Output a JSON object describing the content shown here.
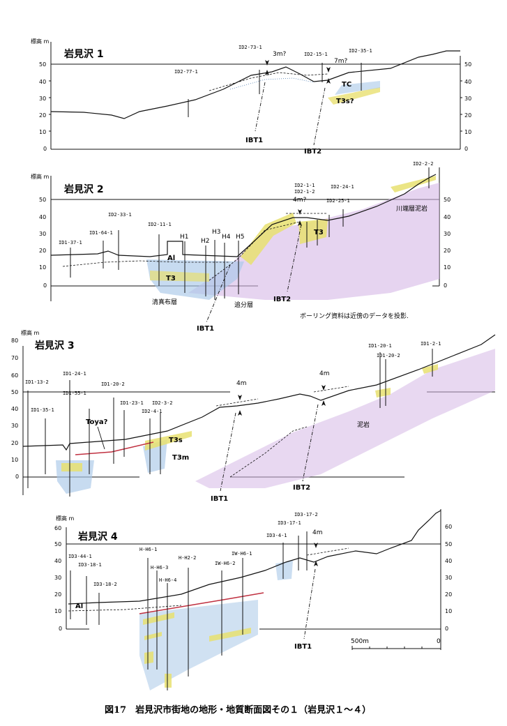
{
  "caption": "図17　岩見沢市街地の地形・地質断面図その１（岩見沢１～４）",
  "unit_label": "標高 m",
  "sections": [
    {
      "title": "岩見沢 1",
      "ticks": [
        "50",
        "40",
        "30",
        "20",
        "10",
        "0"
      ],
      "boreholes": [
        "ID2-77-1",
        "ID2-73-1",
        "ID2-15-1",
        "ID2-35-1"
      ],
      "offsets": [
        "3m?",
        "7m?"
      ],
      "faults": [
        "IBT1",
        "IBT2"
      ],
      "units": [
        "TC",
        "T3s?"
      ]
    },
    {
      "title": "岩見沢 2",
      "ticks": [
        "50",
        "40",
        "30",
        "20",
        "10",
        "0"
      ],
      "boreholes": [
        "ID1-37-1",
        "ID1-64-1",
        "ID2-33-1",
        "ID2-11-1",
        "H1",
        "H2",
        "H3",
        "H4",
        "H5",
        "ID2-1-1",
        "ID2-1-2",
        "ID2-24-1",
        "ID2-25-1",
        "ID2-2-2"
      ],
      "offsets": [
        "4m?"
      ],
      "faults": [
        "IBT1",
        "IBT2"
      ],
      "units": [
        "Al",
        "T3",
        "T3"
      ],
      "formations": [
        "清真布層",
        "追分層",
        "川端層泥岩"
      ],
      "note": "ボーリング資料は近傍のデータを投影."
    },
    {
      "title": "岩見沢 3",
      "ticks": [
        "80",
        "70",
        "60",
        "50",
        "40",
        "30",
        "20",
        "10",
        "0"
      ],
      "boreholes": [
        "ID1-13-2",
        "ID1-24-1",
        "ID1-35-1",
        "ID1-55-1",
        "ID1-20-2",
        "ID1-23-1",
        "ID2-3-2",
        "ID2-4-1",
        "ID1-20-1",
        "ID1-20-2",
        "ID1-2-1"
      ],
      "offsets": [
        "4m",
        "4m"
      ],
      "faults": [
        "IBT1",
        "IBT2"
      ],
      "units": [
        "Toya?",
        "T3s",
        "T3m"
      ],
      "formations": [
        "泥岩"
      ]
    },
    {
      "title": "岩見沢 4",
      "ticks": [
        "60",
        "50",
        "40",
        "30",
        "20",
        "10",
        "0"
      ],
      "ticks_right": [
        "60",
        "50",
        "40",
        "30",
        "20",
        "10",
        "0"
      ],
      "boreholes": [
        "ID3-44-1",
        "ID3-18-1",
        "ID3-18-2",
        "H-H6-1",
        "H-H6-3",
        "H-H6-4",
        "H-H2-2",
        "IW-H6-2",
        "IW-H6-1",
        "ID3-4-1",
        "ID3-17-1",
        "ID3-17-2"
      ],
      "offsets": [
        "4m"
      ],
      "faults": [
        "IBT1"
      ],
      "units": [
        "Al"
      ],
      "scale_labels": [
        "500m",
        "0"
      ]
    }
  ],
  "colors": {
    "ink": "#111111",
    "yellow": "#e8e070",
    "blue": "#a9c8e8",
    "purple": "#d6b8e6",
    "red": "#c03040"
  }
}
